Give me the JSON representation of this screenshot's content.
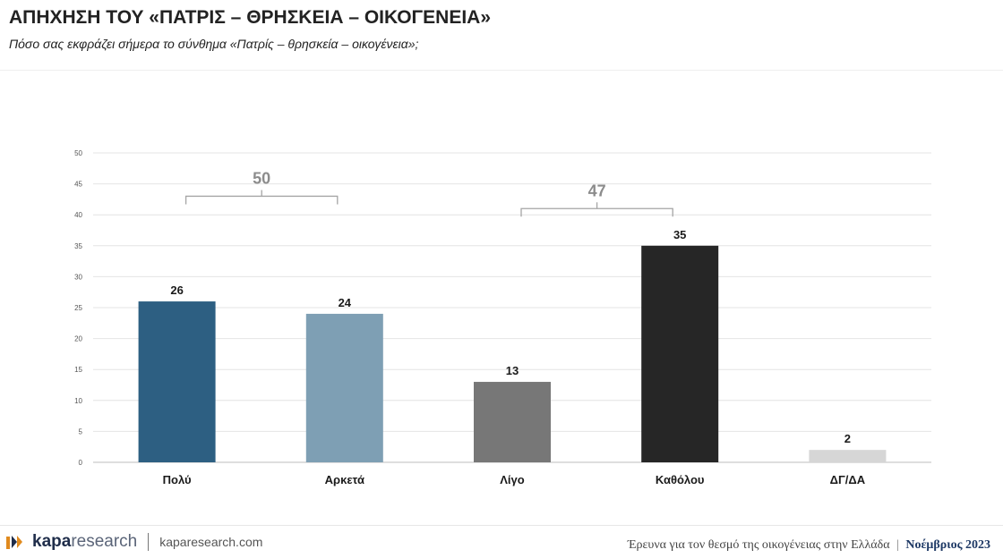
{
  "header": {
    "title": "ΑΠΗΧΗΣΗ ΤΟΥ «ΠΑΤΡΙΣ – ΘΡΗΣΚΕΙΑ – ΟΙΚΟΓΕΝΕΙΑ»",
    "subtitle": "Πόσο σας εκφράζει σήμερα το σύνθημα «Πατρίς – θρησκεία – οικογένεια»;"
  },
  "chart_data": {
    "type": "bar",
    "categories": [
      "Πολύ",
      "Αρκετά",
      "Λίγο",
      "Καθόλου",
      "ΔΓ/ΔΑ"
    ],
    "values": [
      26,
      24,
      13,
      35,
      2
    ],
    "colors": [
      "#2d5f82",
      "#7e9fb4",
      "#777777",
      "#262626",
      "#d6d6d6"
    ],
    "ylim": [
      0,
      50
    ],
    "yticks": [
      0,
      5,
      10,
      15,
      20,
      25,
      30,
      35,
      40,
      45,
      50
    ],
    "grid": true,
    "group_annotations": [
      {
        "label": "50",
        "from_index": 0,
        "to_index": 1,
        "at_value": 43
      },
      {
        "label": "47",
        "from_index": 2,
        "to_index": 3,
        "at_value": 41
      }
    ]
  },
  "footer": {
    "logo_kapa": "kapa",
    "logo_research": "research",
    "website": "kaparesearch.com",
    "survey_text": "Έρευνα για τον θεσμό της οικογένειας στην Ελλάδα",
    "separator": "|",
    "date": "Νοέμβριος 2023"
  }
}
